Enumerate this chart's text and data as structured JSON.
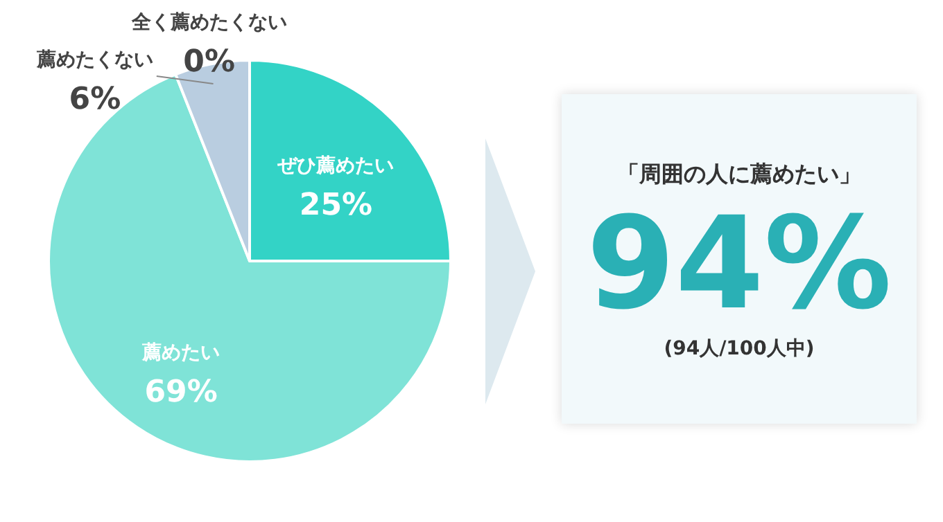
{
  "chart_data": [
    {
      "type": "pie",
      "categories": [
        "ぜひ薦めたい",
        "薦めたい",
        "薦めたくない",
        "全く薦めたくない"
      ],
      "values": [
        25,
        69,
        6,
        0
      ],
      "value_labels": [
        "25%",
        "69%",
        "6%",
        "0%"
      ],
      "colors": [
        "#33d3c6",
        "#7fe3d7",
        "#b9cde0",
        "#9fb4cc"
      ]
    },
    {
      "type": "other",
      "title": "「周囲の人に薦めたい」",
      "annotations": [
        "94%",
        "(94人/100人中)"
      ]
    }
  ]
}
